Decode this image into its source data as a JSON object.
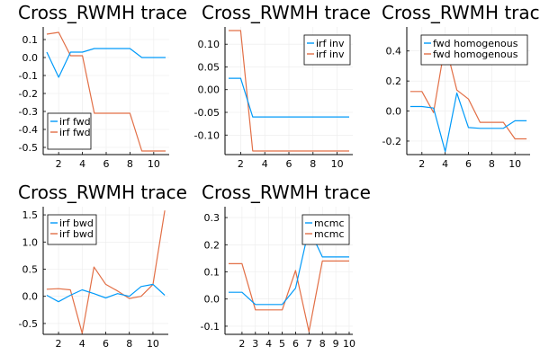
{
  "chart_data": [
    {
      "type": "line",
      "title": "Cross_RWMH trace",
      "x": [
        1,
        2,
        3,
        4,
        5,
        6,
        7,
        8,
        9,
        10,
        11
      ],
      "xlim": [
        0.7,
        11.3
      ],
      "ylim": [
        -0.54,
        0.17
      ],
      "xticks": [
        2,
        4,
        6,
        8,
        10
      ],
      "yticks": [
        0.1,
        0.0,
        -0.1,
        -0.2,
        -0.3,
        -0.4,
        -0.5
      ],
      "ytick_labels": [
        "0.1",
        "0.0",
        "-0.1",
        "-0.2",
        "-0.3",
        "-0.4",
        "-0.5"
      ],
      "legend_position": "bottom-left",
      "series": [
        {
          "name": "irf fwd",
          "values": [
            0.03,
            -0.11,
            0.03,
            0.03,
            0.05,
            0.05,
            0.05,
            0.05,
            0.0,
            0.0,
            0.0
          ]
        },
        {
          "name": "irf fwd",
          "values": [
            0.13,
            0.14,
            0.01,
            0.01,
            -0.31,
            -0.31,
            -0.31,
            -0.31,
            -0.52,
            -0.52,
            -0.52
          ]
        }
      ]
    },
    {
      "type": "line",
      "title": "Cross_RWMH trace",
      "x": [
        1,
        2,
        3,
        4,
        5,
        6,
        7,
        8,
        9,
        10,
        11
      ],
      "xlim": [
        0.7,
        11.3
      ],
      "ylim": [
        -0.143,
        0.138
      ],
      "xticks": [
        2,
        4,
        6,
        8,
        10
      ],
      "yticks": [
        0.1,
        0.05,
        0.0,
        -0.05,
        -0.1
      ],
      "ytick_labels": [
        "0.10",
        "0.05",
        "0.00",
        "-0.05",
        "-0.10"
      ],
      "legend_position": "top-right",
      "series": [
        {
          "name": "irf inv",
          "values": [
            0.025,
            0.025,
            -0.06,
            -0.06,
            -0.06,
            -0.06,
            -0.06,
            -0.06,
            -0.06,
            -0.06,
            -0.06
          ]
        },
        {
          "name": "irf inv",
          "values": [
            0.13,
            0.13,
            -0.135,
            -0.135,
            -0.135,
            -0.135,
            -0.135,
            -0.135,
            -0.135,
            -0.135,
            -0.135
          ]
        }
      ]
    },
    {
      "type": "line",
      "title": "Cross_RWMH trace",
      "x": [
        1,
        2,
        3,
        4,
        5,
        6,
        7,
        8,
        9,
        10,
        11
      ],
      "xlim": [
        0.7,
        11.3
      ],
      "ylim": [
        -0.29,
        0.56
      ],
      "xticks": [
        2,
        4,
        6,
        8,
        10
      ],
      "yticks": [
        0.4,
        0.2,
        0.0,
        -0.2
      ],
      "ytick_labels": [
        "0.4",
        "0.2",
        "0.0",
        "-0.2"
      ],
      "legend_position": "top-right",
      "series": [
        {
          "name": "fwd homogenous",
          "values": [
            0.03,
            0.03,
            0.02,
            -0.27,
            0.12,
            -0.11,
            -0.115,
            -0.115,
            -0.115,
            -0.065,
            -0.065
          ]
        },
        {
          "name": "fwd homogenous",
          "values": [
            0.13,
            0.13,
            -0.01,
            0.45,
            0.14,
            0.08,
            -0.075,
            -0.075,
            -0.075,
            -0.185,
            -0.185
          ]
        }
      ]
    },
    {
      "type": "line",
      "title": "Cross_RWMH trace",
      "x": [
        1,
        2,
        3,
        4,
        5,
        6,
        7,
        8,
        9,
        10,
        11
      ],
      "xlim": [
        0.7,
        11.3
      ],
      "ylim": [
        -0.7,
        1.65
      ],
      "xticks": [
        2,
        4,
        6,
        8,
        10
      ],
      "yticks": [
        1.5,
        1.0,
        0.5,
        0.0,
        -0.5
      ],
      "ytick_labels": [
        "1.5",
        "1.0",
        "0.5",
        "0.0",
        "-0.5"
      ],
      "legend_position": "top-left",
      "series": [
        {
          "name": "irf bwd",
          "values": [
            0.02,
            -0.1,
            0.02,
            0.12,
            0.05,
            -0.03,
            0.05,
            0.0,
            0.18,
            0.22,
            0.02
          ]
        },
        {
          "name": "irf bwd",
          "values": [
            0.13,
            0.14,
            0.12,
            -0.68,
            0.54,
            0.22,
            0.1,
            -0.04,
            0.0,
            0.22,
            1.58
          ]
        }
      ]
    },
    {
      "type": "line",
      "title": "Cross_RWMH trace",
      "x": [
        1,
        2,
        3,
        4,
        5,
        6,
        7,
        8,
        9,
        10
      ],
      "xlim": [
        0.73,
        10.27
      ],
      "ylim": [
        -0.13,
        0.34
      ],
      "xticks": [
        2,
        3,
        4,
        5,
        6,
        7,
        8,
        9,
        10
      ],
      "yticks": [
        0.3,
        0.2,
        0.1,
        0.0,
        -0.1
      ],
      "ytick_labels": [
        "0.3",
        "0.2",
        "0.1",
        "0.0",
        "-0.1"
      ],
      "legend_position": "top-right",
      "series": [
        {
          "name": "mcmc",
          "values": [
            0.025,
            0.025,
            -0.02,
            -0.02,
            -0.02,
            0.04,
            0.26,
            0.155,
            0.155,
            0.155
          ]
        },
        {
          "name": "mcmc",
          "values": [
            0.13,
            0.13,
            -0.04,
            -0.04,
            -0.04,
            0.105,
            -0.12,
            0.14,
            0.14,
            0.14
          ]
        }
      ]
    }
  ],
  "colors": {
    "series1": "#009af9",
    "series2": "#e26f46",
    "axis": "#000000",
    "grid": "#ebebeb"
  }
}
